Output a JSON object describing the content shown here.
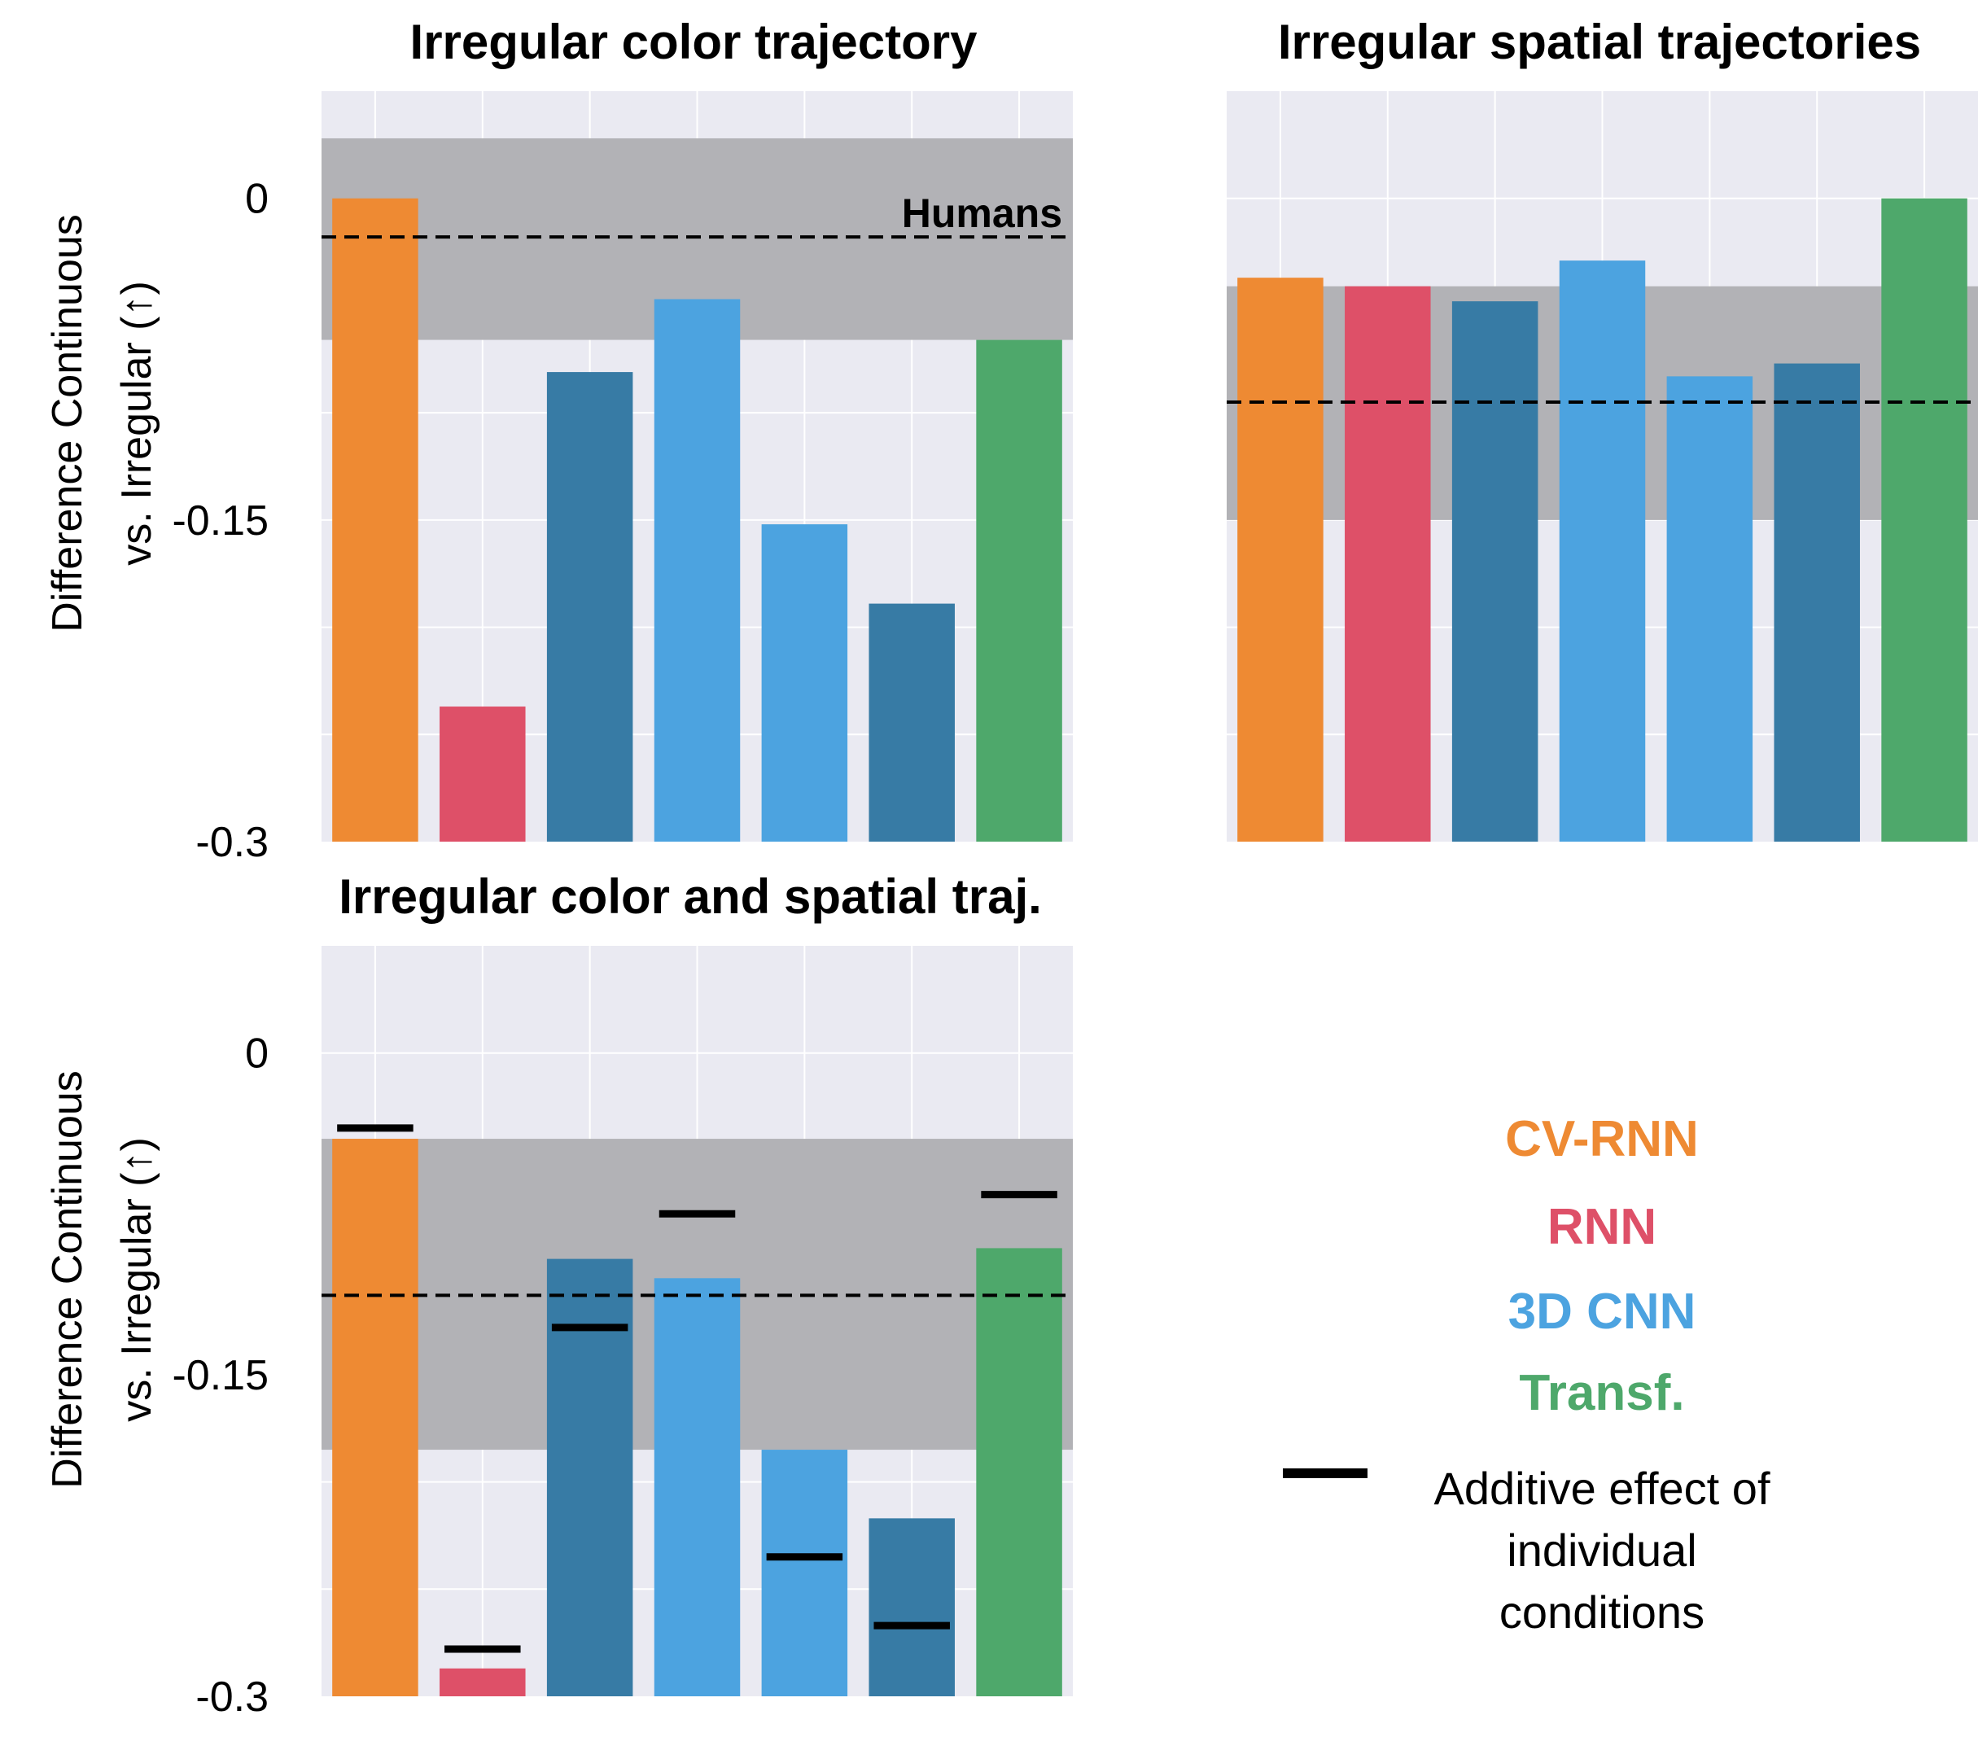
{
  "chart_data": [
    {
      "type": "bar",
      "title": "Irregular color trajectory",
      "ylabel_line1": "Difference Continuous",
      "ylabel_line2": "vs. Irregular (↑)",
      "ylim": [
        -0.3,
        0.05
      ],
      "yticks": [
        "0",
        "-0.15",
        "-0.3"
      ],
      "categories": [
        "CV-RNN",
        "RNN",
        "3D CNN",
        "3D CNN",
        "3D CNN",
        "3D CNN",
        "Transf."
      ],
      "values": [
        0.0,
        -0.237,
        -0.081,
        -0.047,
        -0.152,
        -0.189,
        -0.066
      ],
      "human_mean": -0.018,
      "human_band": [
        -0.066,
        0.028
      ],
      "human_label": "Humans"
    },
    {
      "type": "bar",
      "title": "Irregular spatial trajectories",
      "ylabel_line1": "",
      "ylabel_line2": "",
      "ylim": [
        -0.3,
        0.05
      ],
      "yticks": [
        "",
        "",
        ""
      ],
      "categories": [
        "CV-RNN",
        "RNN",
        "3D CNN",
        "3D CNN",
        "3D CNN",
        "3D CNN",
        "Transf."
      ],
      "values": [
        -0.037,
        -0.041,
        -0.048,
        -0.029,
        -0.083,
        -0.077,
        0.0
      ],
      "human_mean": -0.095,
      "human_band": [
        -0.15,
        -0.041
      ],
      "human_label": ""
    },
    {
      "type": "bar",
      "title": "Irregular color and spatial traj.",
      "ylabel_line1": "Difference Continuous",
      "ylabel_line2": "vs. Irregular (↑)",
      "ylim": [
        -0.3,
        0.05
      ],
      "yticks": [
        "0",
        "-0.15",
        "-0.3"
      ],
      "categories": [
        "CV-RNN",
        "RNN",
        "3D CNN",
        "3D CNN",
        "3D CNN",
        "3D CNN",
        "Transf."
      ],
      "values": [
        -0.04,
        -0.287,
        -0.096,
        -0.105,
        -0.185,
        -0.217,
        -0.091
      ],
      "additive": [
        -0.035,
        -0.278,
        -0.128,
        -0.075,
        -0.235,
        -0.267,
        -0.066
      ],
      "human_mean": -0.113,
      "human_band": [
        -0.185,
        -0.04
      ],
      "human_label": ""
    }
  ],
  "legend": {
    "models": [
      {
        "name": "CV-RNN",
        "color": "#EE8A33"
      },
      {
        "name": "RNN",
        "color": "#DE5068"
      },
      {
        "name": "3D CNN",
        "color": "#4CA3E0"
      },
      {
        "name": "Transf.",
        "color": "#4EA86B"
      }
    ],
    "additive_line1": "Additive effect of",
    "additive_line2": "individual",
    "additive_line3": "conditions"
  },
  "colors": {
    "bars": [
      "#EE8A33",
      "#DE5068",
      "#377BA5",
      "#4CA3E0",
      "#4CA3E0",
      "#377BA5",
      "#4EA86B"
    ],
    "panel_bg": "#EAEAF2",
    "human_band": "#B2B2B6"
  }
}
